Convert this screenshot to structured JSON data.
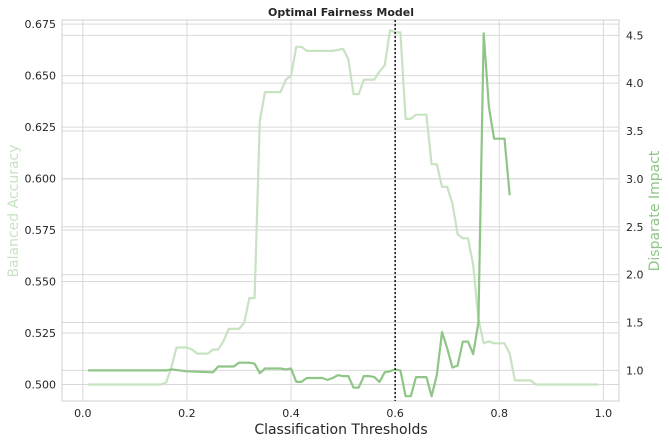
{
  "chart_data": {
    "type": "line",
    "title": "Optimal Fairness Model",
    "xlabel": "Classification Thresholds",
    "ylabel_left": "Balanced Accuracy",
    "ylabel_right": "Disparate Impact",
    "xlim": [
      -0.04,
      1.03
    ],
    "ylim_left": [
      0.492,
      0.677
    ],
    "ylim_right": [
      0.68,
      4.66
    ],
    "x_ticks": [
      0.0,
      0.2,
      0.4,
      0.6,
      0.8,
      1.0
    ],
    "x_tick_labels": [
      "0.0",
      "0.2",
      "0.4",
      "0.6",
      "0.8",
      "1.0"
    ],
    "y_left_ticks": [
      0.5,
      0.525,
      0.55,
      0.575,
      0.6,
      0.625,
      0.65,
      0.675
    ],
    "y_left_tick_labels": [
      "0.500",
      "0.525",
      "0.550",
      "0.575",
      "0.600",
      "0.625",
      "0.650",
      "0.675"
    ],
    "y_right_ticks": [
      1.0,
      1.5,
      2.0,
      2.5,
      3.0,
      3.5,
      4.0,
      4.5
    ],
    "y_right_tick_labels": [
      "1.0",
      "1.5",
      "2.0",
      "2.5",
      "3.0",
      "3.5",
      "4.0",
      "4.5"
    ],
    "grid": true,
    "vline_x": 0.6,
    "colors": {
      "balanced_accuracy": "#c7e3c2",
      "disparate_impact": "#8fc587",
      "vline": "#222222",
      "grid": "#d9d9d9"
    },
    "series": [
      {
        "name": "Balanced Accuracy",
        "axis": "left",
        "x": [
          0.01,
          0.05,
          0.1,
          0.15,
          0.16,
          0.17,
          0.18,
          0.2,
          0.21,
          0.22,
          0.24,
          0.25,
          0.26,
          0.27,
          0.28,
          0.3,
          0.31,
          0.32,
          0.33,
          0.34,
          0.35,
          0.37,
          0.38,
          0.39,
          0.4,
          0.41,
          0.42,
          0.43,
          0.44,
          0.46,
          0.48,
          0.5,
          0.51,
          0.52,
          0.53,
          0.54,
          0.55,
          0.56,
          0.57,
          0.58,
          0.59,
          0.6,
          0.61,
          0.62,
          0.63,
          0.64,
          0.65,
          0.66,
          0.67,
          0.68,
          0.69,
          0.7,
          0.71,
          0.72,
          0.73,
          0.74,
          0.75,
          0.76,
          0.77,
          0.78,
          0.79,
          0.8,
          0.81,
          0.82,
          0.83,
          0.84,
          0.85,
          0.86,
          0.87,
          0.9,
          0.95,
          0.99
        ],
        "values": [
          0.5,
          0.5,
          0.5,
          0.5,
          0.501,
          0.508,
          0.518,
          0.518,
          0.517,
          0.515,
          0.515,
          0.517,
          0.517,
          0.521,
          0.527,
          0.527,
          0.53,
          0.542,
          0.542,
          0.628,
          0.642,
          0.642,
          0.642,
          0.648,
          0.65,
          0.664,
          0.664,
          0.662,
          0.662,
          0.662,
          0.662,
          0.663,
          0.658,
          0.641,
          0.641,
          0.648,
          0.648,
          0.648,
          0.652,
          0.655,
          0.672,
          0.671,
          0.671,
          0.629,
          0.629,
          0.631,
          0.631,
          0.631,
          0.607,
          0.607,
          0.596,
          0.596,
          0.588,
          0.573,
          0.571,
          0.571,
          0.558,
          0.532,
          0.52,
          0.521,
          0.52,
          0.52,
          0.52,
          0.515,
          0.502,
          0.502,
          0.502,
          0.502,
          0.5,
          0.5,
          0.5,
          0.5
        ]
      },
      {
        "name": "Disparate Impact",
        "axis": "right",
        "x": [
          0.01,
          0.05,
          0.1,
          0.15,
          0.16,
          0.17,
          0.2,
          0.25,
          0.26,
          0.27,
          0.29,
          0.3,
          0.31,
          0.32,
          0.33,
          0.34,
          0.35,
          0.36,
          0.37,
          0.38,
          0.39,
          0.4,
          0.41,
          0.42,
          0.43,
          0.44,
          0.46,
          0.47,
          0.48,
          0.49,
          0.5,
          0.51,
          0.52,
          0.53,
          0.54,
          0.55,
          0.56,
          0.57,
          0.58,
          0.59,
          0.6,
          0.61,
          0.62,
          0.63,
          0.64,
          0.65,
          0.66,
          0.67,
          0.68,
          0.69,
          0.7,
          0.71,
          0.72,
          0.73,
          0.74,
          0.75,
          0.76,
          0.77,
          0.78,
          0.79,
          0.8,
          0.81,
          0.82
        ],
        "values": [
          1.0,
          1.0,
          1.0,
          1.0,
          1.0,
          1.01,
          0.99,
          0.98,
          1.04,
          1.04,
          1.04,
          1.08,
          1.08,
          1.08,
          1.07,
          0.97,
          1.02,
          1.02,
          1.02,
          1.02,
          1.01,
          1.02,
          0.88,
          0.88,
          0.92,
          0.92,
          0.92,
          0.9,
          0.92,
          0.95,
          0.94,
          0.94,
          0.82,
          0.82,
          0.94,
          0.94,
          0.93,
          0.88,
          0.98,
          0.99,
          1.01,
          1.0,
          0.73,
          0.73,
          0.93,
          0.93,
          0.93,
          0.73,
          0.95,
          1.4,
          1.23,
          1.03,
          1.05,
          1.3,
          1.3,
          1.17,
          1.5,
          4.52,
          3.75,
          3.42,
          3.42,
          3.42,
          2.83
        ]
      }
    ]
  }
}
